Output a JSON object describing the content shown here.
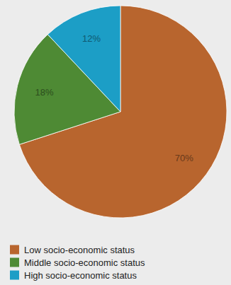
{
  "chart_data": {
    "type": "pie",
    "categories": [
      "Low socio-economic status",
      "Middle socio-economic status",
      "High socio-economic status"
    ],
    "values": [
      70,
      18,
      12
    ],
    "value_labels": [
      "70%",
      "18%",
      "12%"
    ],
    "colors": [
      "#b8652e",
      "#4e8a34",
      "#1c9ec6"
    ],
    "data_labels": true,
    "legend": "bottom-left"
  }
}
